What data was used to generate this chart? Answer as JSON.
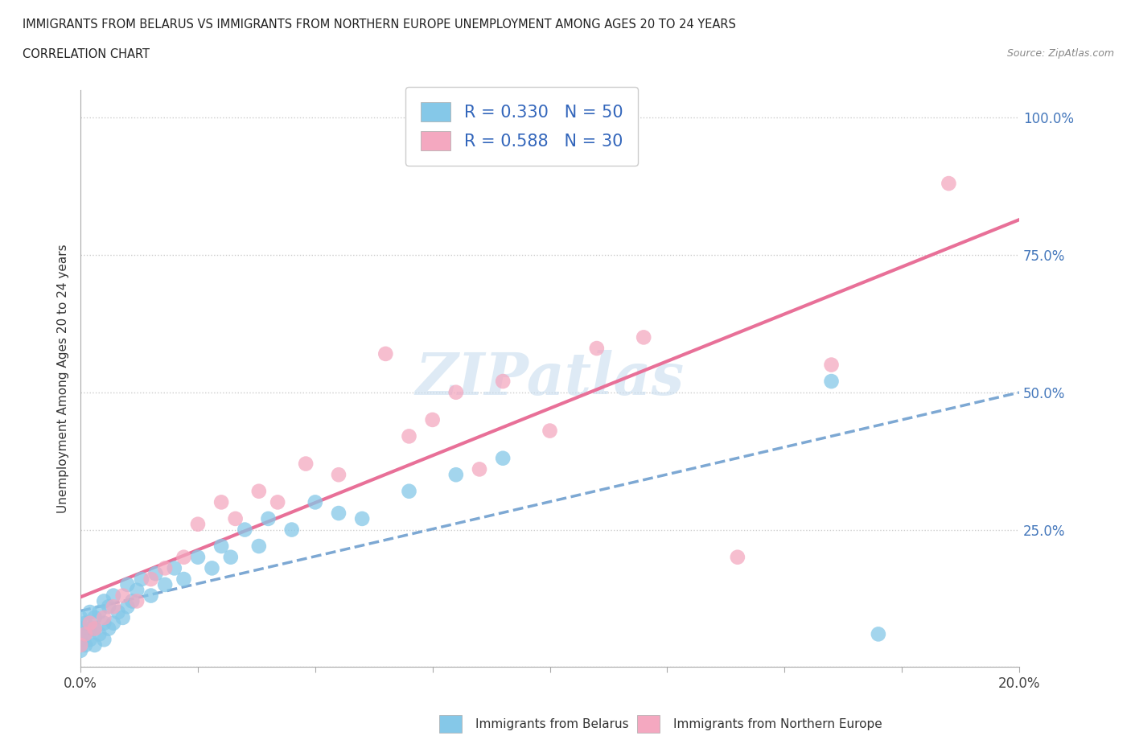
{
  "title_line1": "IMMIGRANTS FROM BELARUS VS IMMIGRANTS FROM NORTHERN EUROPE UNEMPLOYMENT AMONG AGES 20 TO 24 YEARS",
  "title_line2": "CORRELATION CHART",
  "source_text": "Source: ZipAtlas.com",
  "ylabel": "Unemployment Among Ages 20 to 24 years",
  "xlim": [
    0.0,
    0.2
  ],
  "ylim": [
    0.0,
    1.05
  ],
  "xtick_pos": [
    0.0,
    0.025,
    0.05,
    0.075,
    0.1,
    0.125,
    0.15,
    0.175,
    0.2
  ],
  "xtick_labels": [
    "0.0%",
    "",
    "",
    "",
    "",
    "",
    "",
    "",
    "20.0%"
  ],
  "ytick_pos": [
    0.0,
    0.25,
    0.5,
    0.75,
    1.0
  ],
  "ytick_labels": [
    "",
    "25.0%",
    "50.0%",
    "75.0%",
    "100.0%"
  ],
  "R_belarus": 0.33,
  "N_belarus": 50,
  "R_northern": 0.588,
  "N_northern": 30,
  "color_belarus": "#85C8E8",
  "color_northern": "#F4A8C0",
  "color_trendline_belarus": "#6699CC",
  "color_trendline_northern": "#E87098",
  "legend_label_belarus": "Immigrants from Belarus",
  "legend_label_northern": "Immigrants from Northern Europe",
  "belarus_x": [
    0.0,
    0.0,
    0.0,
    0.0,
    0.001,
    0.001,
    0.001,
    0.002,
    0.002,
    0.002,
    0.003,
    0.003,
    0.003,
    0.004,
    0.004,
    0.005,
    0.005,
    0.005,
    0.006,
    0.006,
    0.007,
    0.007,
    0.008,
    0.009,
    0.01,
    0.01,
    0.011,
    0.012,
    0.013,
    0.015,
    0.016,
    0.018,
    0.02,
    0.022,
    0.025,
    0.028,
    0.03,
    0.032,
    0.035,
    0.038,
    0.04,
    0.045,
    0.05,
    0.055,
    0.06,
    0.07,
    0.08,
    0.09,
    0.16,
    0.17
  ],
  "belarus_y": [
    0.03,
    0.05,
    0.07,
    0.09,
    0.04,
    0.06,
    0.08,
    0.05,
    0.07,
    0.1,
    0.04,
    0.07,
    0.09,
    0.06,
    0.1,
    0.05,
    0.08,
    0.12,
    0.07,
    0.11,
    0.08,
    0.13,
    0.1,
    0.09,
    0.11,
    0.15,
    0.12,
    0.14,
    0.16,
    0.13,
    0.17,
    0.15,
    0.18,
    0.16,
    0.2,
    0.18,
    0.22,
    0.2,
    0.25,
    0.22,
    0.27,
    0.25,
    0.3,
    0.28,
    0.27,
    0.32,
    0.35,
    0.38,
    0.52,
    0.06
  ],
  "northern_x": [
    0.0,
    0.001,
    0.002,
    0.003,
    0.005,
    0.007,
    0.009,
    0.012,
    0.015,
    0.018,
    0.022,
    0.025,
    0.03,
    0.033,
    0.038,
    0.042,
    0.048,
    0.055,
    0.065,
    0.07,
    0.075,
    0.08,
    0.085,
    0.09,
    0.1,
    0.11,
    0.12,
    0.14,
    0.16,
    0.185
  ],
  "northern_y": [
    0.04,
    0.06,
    0.08,
    0.07,
    0.09,
    0.11,
    0.13,
    0.12,
    0.16,
    0.18,
    0.2,
    0.26,
    0.3,
    0.27,
    0.32,
    0.3,
    0.37,
    0.35,
    0.57,
    0.42,
    0.45,
    0.5,
    0.36,
    0.52,
    0.43,
    0.58,
    0.6,
    0.2,
    0.55,
    0.88
  ],
  "trendline_x_start": 0.0,
  "trendline_x_end": 0.2
}
